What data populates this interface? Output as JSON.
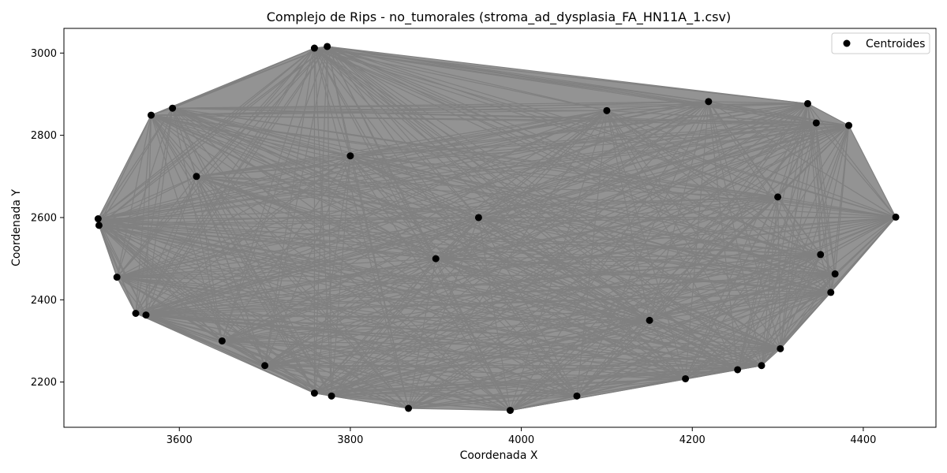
{
  "chart_data": {
    "type": "scatter",
    "title": "Complejo de Rips - no_tumorales (stroma_ad_dysplasia_FA_HN11A_1.csv)",
    "xlabel": "Coordenada X",
    "ylabel": "Coordenada Y",
    "xlim": [
      3465,
      4485
    ],
    "ylim": [
      2090,
      3060
    ],
    "xticks": [
      3600,
      3800,
      4000,
      4200,
      4400
    ],
    "yticks": [
      2200,
      2400,
      2600,
      2800,
      3000
    ],
    "grid": false,
    "legend": {
      "position": "top-right",
      "entries": [
        "Centroides"
      ]
    },
    "edge_color": "#808080",
    "point_color": "#000000",
    "series": [
      {
        "name": "Centroides",
        "x": [
          3505,
          3506,
          3527,
          3549,
          3561,
          3567,
          3592,
          3758,
          3773,
          3758,
          3778,
          3868,
          3987,
          4065,
          4192,
          4253,
          4281,
          4303,
          4362,
          4367,
          4335,
          4383,
          4438,
          4219,
          4350,
          4345,
          4100,
          3700,
          3650,
          3620,
          3900,
          4150,
          4300,
          3800,
          3950
        ],
        "y": [
          2597,
          2581,
          2455,
          2367,
          2363,
          2849,
          2866,
          3012,
          3016,
          2173,
          2166,
          2136,
          2131,
          2166,
          2208,
          2230,
          2240,
          2281,
          2418,
          2463,
          2877,
          2824,
          2601,
          2882,
          2510,
          2830,
          2860,
          2240,
          2300,
          2700,
          2500,
          2350,
          2650,
          2750,
          2600
        ]
      }
    ]
  }
}
